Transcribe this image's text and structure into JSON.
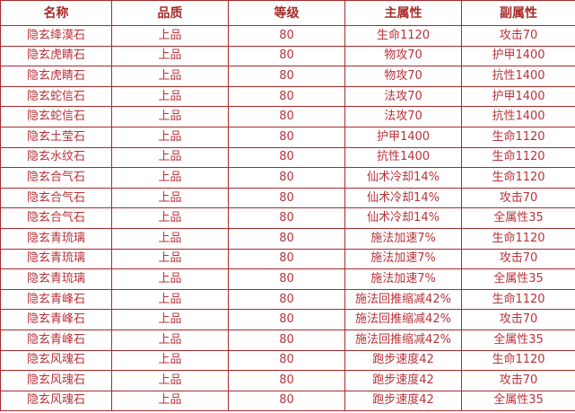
{
  "headers": [
    "名称",
    "品质",
    "等级",
    "主属性",
    "副属性"
  ],
  "rows": [
    [
      "隐玄绛漠石",
      "上品",
      "80",
      "生命1120",
      "攻击70"
    ],
    [
      "隐玄虎睛石",
      "上品",
      "80",
      "物攻70",
      "护甲1400"
    ],
    [
      "隐玄虎睛石",
      "上品",
      "80",
      "物攻70",
      "抗性1400"
    ],
    [
      "隐玄蛇信石",
      "上品",
      "80",
      "法攻70",
      "护甲1400"
    ],
    [
      "隐玄蛇信石",
      "上品",
      "80",
      "法攻70",
      "抗性1400"
    ],
    [
      "隐玄土莹石",
      "上品",
      "80",
      "护甲1400",
      "生命1120"
    ],
    [
      "隐玄水纹石",
      "上品",
      "80",
      "抗性1400",
      "生命1120"
    ],
    [
      "隐玄合气石",
      "上品",
      "80",
      "仙术冷却14%",
      "生命1120"
    ],
    [
      "隐玄合气石",
      "上品",
      "80",
      "仙术冷却14%",
      "攻击70"
    ],
    [
      "隐玄合气石",
      "上品",
      "80",
      "仙术冷却14%",
      "全属性35"
    ],
    [
      "隐玄青琉璃",
      "上品",
      "80",
      "施法加速7%",
      "生命1120"
    ],
    [
      "隐玄青琉璃",
      "上品",
      "80",
      "施法加速7%",
      "攻击70"
    ],
    [
      "隐玄青琉璃",
      "上品",
      "80",
      "施法加速7%",
      "全属性35"
    ],
    [
      "隐玄青峰石",
      "上品",
      "80",
      "施法回推缩减42%",
      "生命1120"
    ],
    [
      "隐玄青峰石",
      "上品",
      "80",
      "施法回推缩减42%",
      "攻击70"
    ],
    [
      "隐玄青峰石",
      "上品",
      "80",
      "施法回推缩减42%",
      "全属性35"
    ],
    [
      "隐玄风魂石",
      "上品",
      "80",
      "跑步速度42",
      "生命1120"
    ],
    [
      "隐玄风魂石",
      "上品",
      "80",
      "跑步速度42",
      "攻击70"
    ],
    [
      "隐玄风魂石",
      "上品",
      "80",
      "跑步速度42",
      "全属性35"
    ]
  ]
}
